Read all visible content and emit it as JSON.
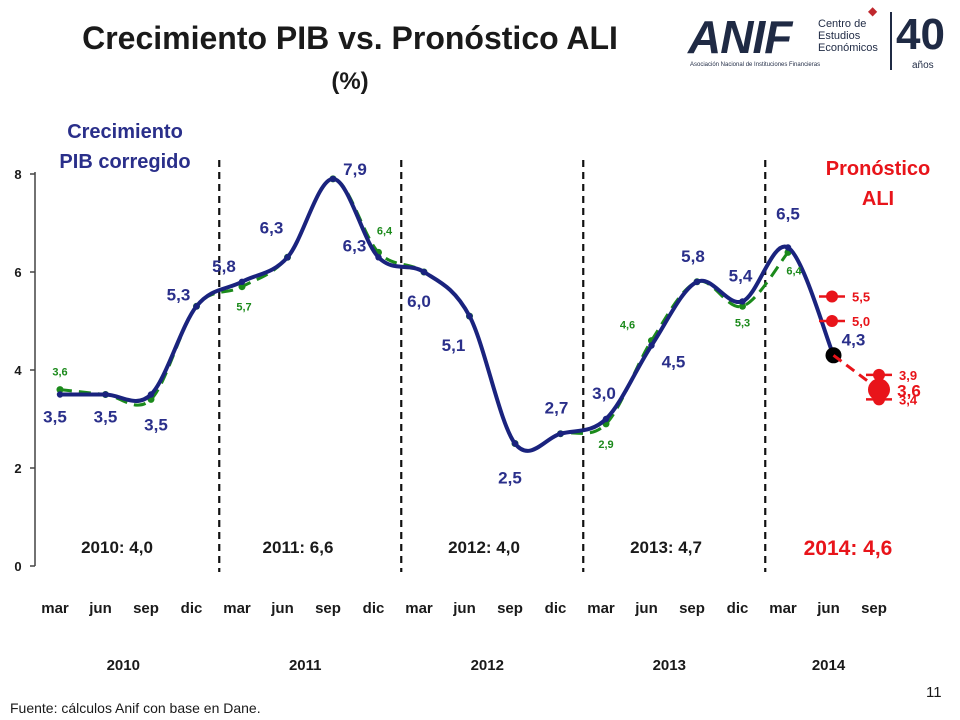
{
  "header": {
    "title": "Crecimiento PIB vs. Pronóstico ALI",
    "subtitle": "(%)"
  },
  "logo": {
    "brand": "ANIF",
    "tagline": "Asociación Nacional de Instituciones Financieras",
    "center_lines": [
      "Centro de",
      "Estudios",
      "Económicos"
    ],
    "anniversary": "40",
    "anniversary_unit": "años"
  },
  "footer": {
    "source": "Fuente: cálculos Anif con base en Dane.",
    "page_number": "11"
  },
  "colors": {
    "corrected_series": "#1a237e",
    "original_series": "#1b8a1b",
    "forecast": "#e8141a",
    "annotation": "#2a2f8a",
    "text": "#1a1a1a"
  },
  "chart_data": {
    "type": "line",
    "title": "Crecimiento PIB vs. Pronóstico ALI",
    "subtitle": "(%)",
    "ylim": [
      0,
      8
    ],
    "yticks": [
      "0",
      "2",
      "4",
      "6",
      "8"
    ],
    "grid": false,
    "x_month_labels": [
      "mar",
      "jun",
      "sep",
      "dic",
      "mar",
      "jun",
      "sep",
      "dic",
      "mar",
      "jun",
      "sep",
      "dic",
      "mar",
      "jun",
      "sep",
      "dic",
      "mar",
      "jun",
      "sep"
    ],
    "x_year_labels": [
      "2010",
      "2011",
      "2012",
      "2013",
      "2014"
    ],
    "series": [
      {
        "name": "Crecimiento PIB corregido",
        "x": [
          "mar 2010",
          "jun 2010",
          "sep 2010",
          "dic 2010",
          "mar 2011",
          "jun 2011",
          "sep 2011",
          "dic 2011",
          "mar 2012",
          "jun 2012",
          "sep 2012",
          "dic 2012",
          "mar 2013",
          "jun 2013",
          "sep 2013",
          "dic 2013",
          "mar 2014",
          "jun 2014"
        ],
        "values": [
          3.5,
          3.5,
          3.5,
          5.3,
          5.8,
          6.3,
          7.9,
          6.3,
          6.0,
          5.1,
          2.5,
          2.7,
          3.0,
          4.5,
          5.8,
          5.4,
          6.5,
          4.3
        ],
        "labels": [
          "3,5",
          "3,5",
          "3,5",
          "5,3",
          "5,8",
          "6,3",
          "7,9",
          "6,3",
          "6,0",
          "5,1",
          "2,5",
          "2,7",
          "3,0",
          "4,5",
          "5,8",
          "5,4",
          "6,5",
          "4,3"
        ]
      },
      {
        "name": "",
        "x": [
          "mar 2010",
          "jun 2010",
          "sep 2010",
          "dic 2010",
          "mar 2011",
          "jun 2011",
          "sep 2011",
          "dic 2011",
          "mar 2012",
          "jun 2012",
          "sep 2012",
          "dic 2012",
          "mar 2013",
          "jun 2013",
          "sep 2013",
          "dic 2013",
          "mar 2014"
        ],
        "values": [
          3.6,
          3.5,
          3.4,
          5.3,
          5.7,
          6.3,
          7.9,
          6.4,
          6.0,
          5.1,
          2.5,
          2.7,
          2.9,
          4.6,
          5.8,
          5.3,
          6.4
        ],
        "labels": [
          "3,6",
          "",
          "",
          "",
          "5,7",
          "",
          "",
          "6,4",
          "",
          "",
          "",
          "",
          "2,9",
          "4,6",
          "",
          "5,3",
          "6,4"
        ]
      }
    ],
    "forecast": {
      "name": "Pronóstico ALI",
      "x": "sep 2014",
      "central": {
        "value": 3.6,
        "label": "3,6"
      },
      "range": [
        {
          "value": 5.5,
          "label": "5,5"
        },
        {
          "value": 5.0,
          "label": "5,0"
        },
        {
          "value": 3.9,
          "label": "3,9"
        },
        {
          "value": 3.4,
          "label": "3,4"
        }
      ]
    },
    "annual_growth": [
      {
        "label": "2010: 4,0",
        "year": "2010",
        "value": 4.0
      },
      {
        "label": "2011: 6,6",
        "year": "2011",
        "value": 6.6
      },
      {
        "label": "2012: 4,0",
        "year": "2012",
        "value": 4.0
      },
      {
        "label": "2013: 4,7",
        "year": "2013",
        "value": 4.7
      },
      {
        "label": "2014: 4,6",
        "year": "2014",
        "value": 4.6
      }
    ],
    "annotations": {
      "corrected_label": [
        "Crecimiento",
        "PIB corregido"
      ],
      "forecast_label": [
        "Pronóstico",
        "ALI"
      ]
    }
  }
}
